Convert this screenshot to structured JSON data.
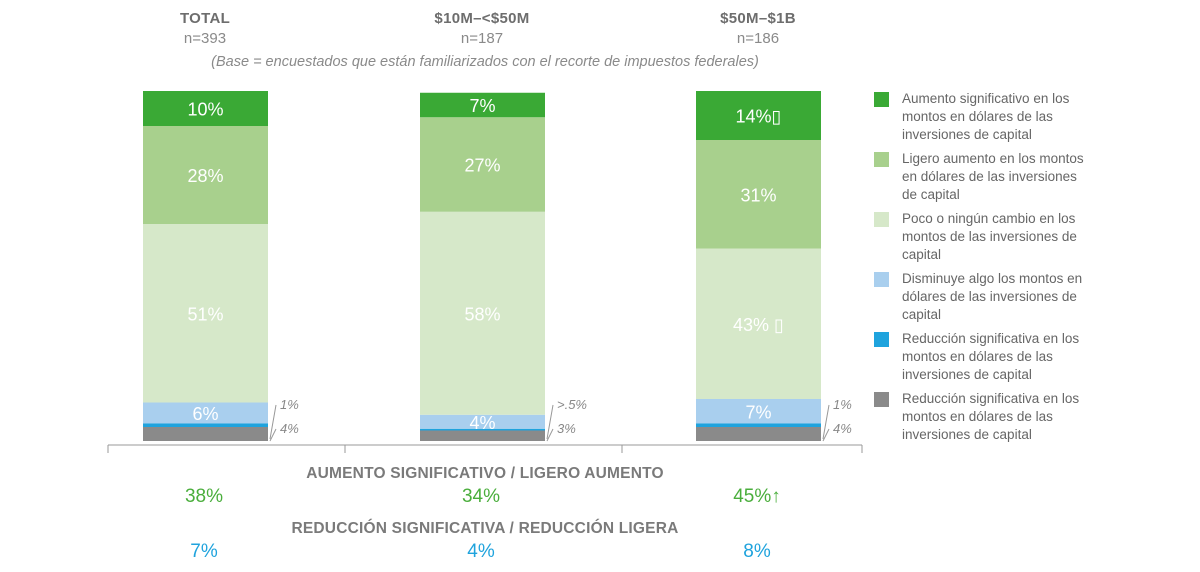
{
  "chart_data": {
    "type": "bar",
    "subtype": "stacked-100",
    "note": "(Base = encuestados que están familiarizados con el recorte de impuestos federales)",
    "categories": [
      "TOTAL",
      "$10M–<$50M",
      "$50M–$1B"
    ],
    "sample_sizes": [
      "n=393",
      "n=187",
      "n=186"
    ],
    "series": [
      {
        "name": "Reducción significativa en los montos en dólares de las inversiones de capital",
        "color": "#8a8a8a",
        "values": [
          4,
          3,
          4
        ],
        "labels": [
          "4%",
          "3%",
          "4%"
        ]
      },
      {
        "name": "Reducción significativa en los montos en dólares de las inversiones de capital",
        "color": "#1fa3dd",
        "values": [
          1,
          0.5,
          1
        ],
        "labels": [
          "1%",
          ">.5%",
          "1%"
        ]
      },
      {
        "name": "Disminuye algo los montos en dólares de las inversiones de capital",
        "color": "#a9cfee",
        "values": [
          6,
          4,
          7
        ],
        "labels": [
          "6%",
          "4%",
          "7%"
        ]
      },
      {
        "name": "Poco o ningún cambio en los montos de las inversiones de capital",
        "color": "#d6e8c9",
        "values": [
          51,
          58,
          43
        ],
        "labels": [
          "51%",
          "58%",
          "43% ▯"
        ]
      },
      {
        "name": "Ligero aumento en los montos en dólares de las inversiones de capital",
        "color": "#a8d08d",
        "values": [
          28,
          27,
          31
        ],
        "labels": [
          "28%",
          "27%",
          "31%"
        ]
      },
      {
        "name": "Aumento significativo en los montos en dólares de las inversiones de capital",
        "color": "#3aa935",
        "values": [
          10,
          7,
          14
        ],
        "labels": [
          "10%",
          "7%",
          "14%▯"
        ]
      }
    ],
    "ylim": [
      0,
      100
    ],
    "legend": [
      {
        "label": "Aumento significativo en los montos en dólares de las inversiones de capital",
        "color": "#3aa935"
      },
      {
        "label": "Ligero aumento en los montos en dólares de las inversiones de capital",
        "color": "#a8d08d"
      },
      {
        "label": "Poco o ningún cambio en los montos de las inversiones de capital",
        "color": "#d6e8c9"
      },
      {
        "label": "Disminuye algo los montos en dólares de las inversiones de capital",
        "color": "#a9cfee"
      },
      {
        "label": "Reducción significativa en los montos en dólares de las inversiones de capital",
        "color": "#1fa3dd"
      },
      {
        "label": "Reducción significativa en los montos en dólares de las inversiones de capital",
        "color": "#8a8a8a"
      }
    ],
    "summary": {
      "increase_title": "AUMENTO SIGNIFICATIVO / LIGERO AUMENTO",
      "increase_values": [
        "38%",
        "34%",
        "45%↑"
      ],
      "increase_color": "#4aae3c",
      "decrease_title": "REDUCCIÓN SIGNIFICATIVA / REDUCCIÓN LIGERA",
      "decrease_values": [
        "7%",
        "4%",
        "8%"
      ],
      "decrease_color": "#1fa3dd"
    }
  }
}
